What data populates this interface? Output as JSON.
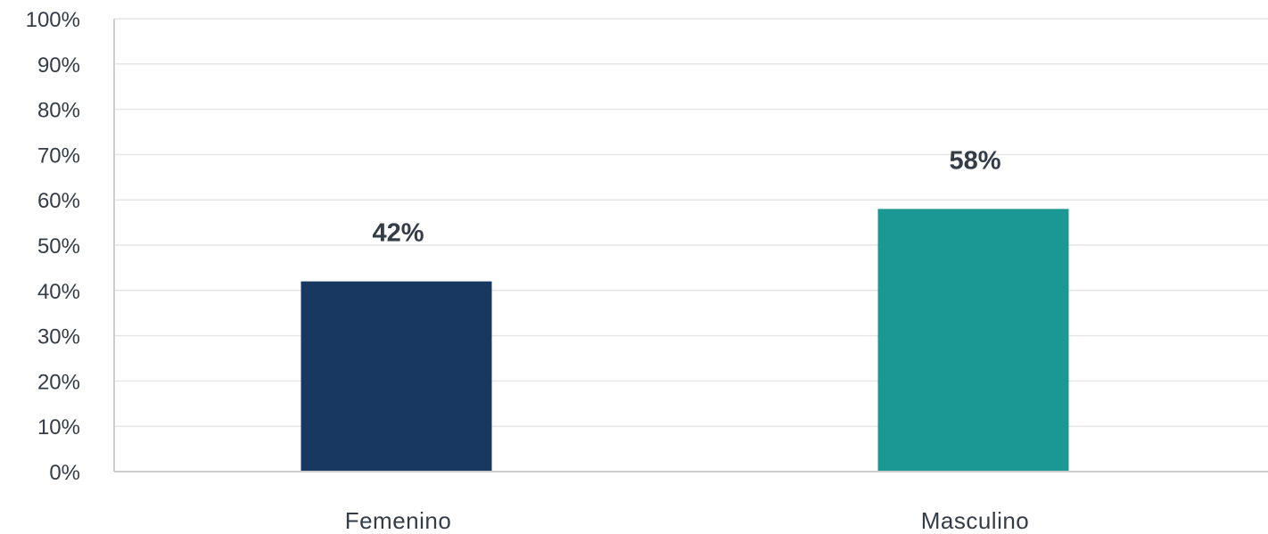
{
  "chart_data": {
    "type": "bar",
    "categories": [
      "Femenino",
      "Masculino"
    ],
    "values": [
      42,
      58
    ],
    "data_labels": [
      "42%",
      "58%"
    ],
    "colors": [
      "#183861",
      "#1b9893"
    ],
    "ylim": [
      0,
      100
    ],
    "yticks": [
      0,
      10,
      20,
      30,
      40,
      50,
      60,
      70,
      80,
      90,
      100
    ],
    "ytick_labels": [
      "0%",
      "10%",
      "20%",
      "30%",
      "40%",
      "50%",
      "60%",
      "70%",
      "80%",
      "90%",
      "100%"
    ],
    "grid": true,
    "legend": "none"
  }
}
